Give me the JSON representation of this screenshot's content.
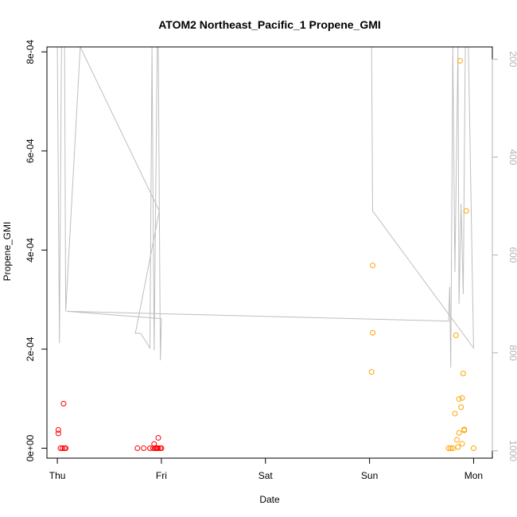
{
  "chart_data": {
    "type": "scatter",
    "title": "ATOM2 Northeast_Pacific_1 Propene_GMI",
    "xlabel": "Date",
    "ylabel": "Propene_GMI",
    "x_ticks": [
      "Thu",
      "Fri",
      "Sat",
      "Sun",
      "Mon"
    ],
    "xlim": [
      -0.1,
      4.18
    ],
    "ylim": [
      -2e-05,
      0.00081
    ],
    "y_ticks": [
      0,
      0.0002,
      0.0004,
      0.0006,
      0.0008
    ],
    "y_tick_labels": [
      "0e+00",
      "2e-04",
      "4e-04",
      "6e-04",
      "8e-04"
    ],
    "y2_ticks": [
      200,
      400,
      600,
      800,
      1000
    ],
    "y2_lim": [
      1015,
      175
    ],
    "colors": {
      "series1": "#ff0000",
      "series2": "#ffa500",
      "line": "#bebebe",
      "axis": "#b3b3b3"
    },
    "series": [
      {
        "points": [
          [
            0.01,
            3.7e-05
          ],
          [
            0.01,
            3e-05
          ],
          [
            0.03,
            0.0
          ],
          [
            0.05,
            0.0
          ],
          [
            0.06,
            9e-05
          ],
          [
            0.07,
            0.0
          ],
          [
            0.08,
            0.0
          ],
          [
            0.77,
            0.0
          ],
          [
            0.83,
            0.0
          ],
          [
            0.89,
            0.0
          ],
          [
            0.92,
            0.0
          ],
          [
            0.93,
            8.5e-06
          ],
          [
            0.94,
            0.0
          ],
          [
            0.95,
            0.0
          ],
          [
            0.96,
            0.0
          ],
          [
            0.97,
            0.0
          ],
          [
            0.97,
            2.1e-05
          ],
          [
            0.99,
            0.0
          ],
          [
            1.0,
            0.0
          ]
        ]
      },
      {
        "points": [
          [
            3.03,
            0.000369
          ],
          [
            3.03,
            0.000233
          ],
          [
            3.02,
            0.000154
          ],
          [
            3.76,
            0.0
          ],
          [
            3.78,
            0.0
          ],
          [
            3.8,
            0.0
          ],
          [
            3.82,
            7e-05
          ],
          [
            3.83,
            0.000228
          ],
          [
            3.84,
            1.7e-05
          ],
          [
            3.85,
            2.5e-06
          ],
          [
            3.86,
            9.95e-05
          ],
          [
            3.86,
            3.1e-05
          ],
          [
            3.87,
            0.000782
          ],
          [
            3.88,
            8.3e-05
          ],
          [
            3.89,
            0.0001015
          ],
          [
            3.89,
            9e-06
          ],
          [
            3.9,
            0.000151
          ],
          [
            3.91,
            3.8e-05
          ],
          [
            3.91,
            3.6e-05
          ],
          [
            3.93,
            0.000479
          ],
          [
            4.0,
            0.0
          ]
        ]
      }
    ],
    "line": [
      [
        0.0,
        175
      ],
      [
        0.02,
        780
      ],
      [
        0.04,
        175
      ],
      [
        0.07,
        175
      ],
      [
        0.08,
        715
      ],
      [
        0.22,
        175
      ],
      [
        0.98,
        510
      ],
      [
        0.75,
        760
      ],
      [
        0.8,
        760
      ],
      [
        0.89,
        790
      ],
      [
        0.91,
        175
      ],
      [
        0.93,
        795
      ],
      [
        0.96,
        175
      ],
      [
        0.97,
        175
      ],
      [
        0.99,
        815
      ],
      [
        1.0,
        730
      ],
      [
        0.09,
        715
      ],
      [
        3.76,
        735
      ],
      [
        3.77,
        665
      ],
      [
        3.78,
        830
      ],
      [
        3.8,
        175
      ],
      [
        3.82,
        635
      ],
      [
        3.85,
        175
      ],
      [
        3.86,
        700
      ],
      [
        3.88,
        495
      ],
      [
        3.9,
        680
      ],
      [
        3.92,
        175
      ],
      [
        3.95,
        175
      ],
      [
        4.0,
        790
      ],
      [
        3.03,
        510
      ],
      [
        3.02,
        175
      ]
    ]
  }
}
